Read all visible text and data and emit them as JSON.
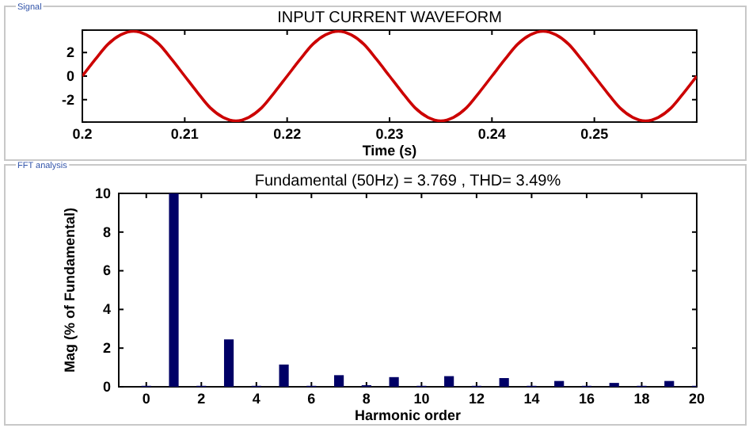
{
  "chart_data": [
    {
      "type": "line",
      "title": "INPUT CURRENT WAVEFORM",
      "xlabel": "Time (s)",
      "annotations": [
        "Signal"
      ],
      "x": [
        0.2,
        0.20125,
        0.2025,
        0.20375,
        0.205,
        0.20625,
        0.2075,
        0.20875,
        0.21,
        0.21125,
        0.2125,
        0.21375,
        0.215,
        0.21625,
        0.2175,
        0.21875,
        0.22,
        0.22125,
        0.2225,
        0.22375,
        0.225,
        0.22625,
        0.2275,
        0.22875,
        0.23,
        0.23125,
        0.2325,
        0.23375,
        0.235,
        0.23625,
        0.2375,
        0.23875,
        0.24,
        0.24125,
        0.2425,
        0.24375,
        0.245,
        0.24625,
        0.2475,
        0.24875,
        0.25,
        0.25125,
        0.2525,
        0.25375,
        0.255,
        0.25625,
        0.2575,
        0.25875,
        0.26
      ],
      "series": [
        {
          "color": "#cc0000",
          "values": [
            0,
            1.4,
            2.7,
            3.5,
            3.8,
            3.5,
            2.7,
            1.4,
            0,
            -1.4,
            -2.7,
            -3.5,
            -3.8,
            -3.5,
            -2.7,
            -1.4,
            0,
            1.4,
            2.7,
            3.5,
            3.8,
            3.5,
            2.7,
            1.4,
            0,
            -1.4,
            -2.7,
            -3.5,
            -3.8,
            -3.5,
            -2.7,
            -1.4,
            0,
            1.4,
            2.7,
            3.5,
            3.8,
            3.5,
            2.7,
            1.4,
            0,
            -1.4,
            -2.7,
            -3.5,
            -3.8,
            -3.5,
            -2.7,
            -1.4,
            0
          ]
        }
      ],
      "xlim": [
        0.2,
        0.26
      ],
      "xticks": [
        0.2,
        0.21,
        0.22,
        0.23,
        0.24,
        0.25
      ],
      "ylim": [
        -3.9,
        3.9
      ],
      "yticks": [
        -2,
        0,
        2
      ]
    },
    {
      "type": "bar",
      "title": "Fundamental (50Hz) = 3.769 , THD= 3.49%",
      "xlabel": "Harmonic order",
      "ylabel": "Mag (% of Fundamental)",
      "annotations": [
        "FFT analysis"
      ],
      "x": [
        0,
        1,
        2,
        3,
        4,
        5,
        6,
        7,
        8,
        9,
        10,
        11,
        12,
        13,
        14,
        15,
        16,
        17,
        18,
        19,
        20
      ],
      "series": [
        {
          "color": "#000066",
          "values": [
            0.05,
            10,
            0.05,
            2.45,
            0.05,
            1.15,
            0.05,
            0.6,
            0.08,
            0.5,
            0.05,
            0.55,
            0.05,
            0.45,
            0.05,
            0.3,
            0.05,
            0.2,
            0.05,
            0.3,
            0.05
          ]
        }
      ],
      "xlim": [
        -1,
        20
      ],
      "xticks": [
        0,
        2,
        4,
        6,
        8,
        10,
        12,
        14,
        16,
        18,
        20
      ],
      "ylim": [
        0,
        10
      ],
      "yticks": [
        0,
        2,
        4,
        6,
        8,
        10
      ]
    }
  ]
}
